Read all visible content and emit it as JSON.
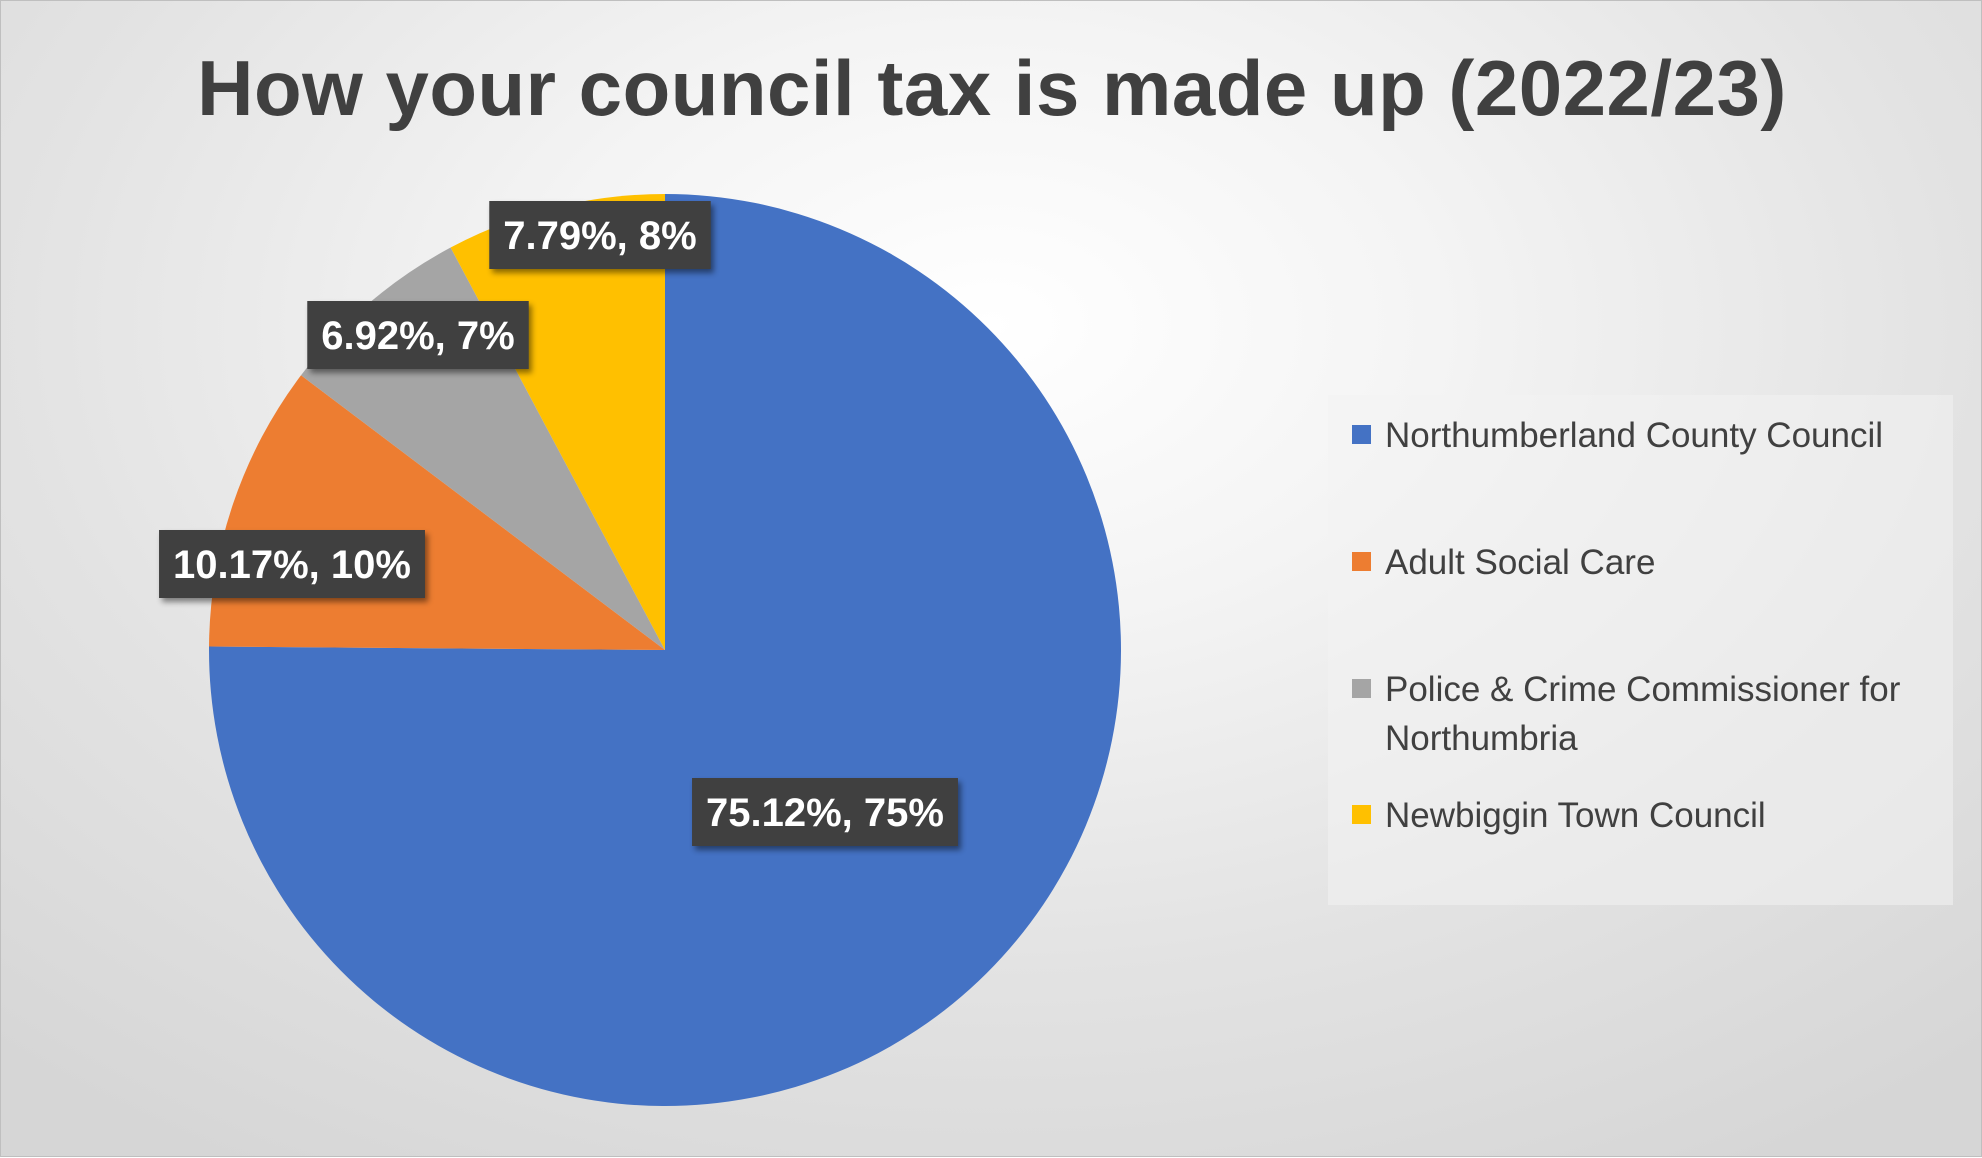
{
  "chart_data": {
    "type": "pie",
    "title": "How your council tax is made up (2022/23)",
    "start_angle_deg": 0,
    "direction": "clockwise",
    "slices": [
      {
        "name": "Northumberland County Council",
        "value": 75.12,
        "label": "75.12%, 75%",
        "color": "#4472C4"
      },
      {
        "name": "Adult Social Care",
        "value": 10.17,
        "label": "10.17%, 10%",
        "color": "#ED7D31"
      },
      {
        "name": "Police & Crime Commissioner for Northumbria",
        "value": 6.92,
        "label": "6.92%, 7%",
        "color": "#A5A5A5"
      },
      {
        "name": "Newbiggin Town Council",
        "value": 7.79,
        "label": "7.79%, 8%",
        "color": "#FFC000"
      }
    ],
    "legend": {
      "position": "right",
      "items": [
        "Northumberland County Council",
        "Adult Social Care",
        "Police & Crime Commissioner for Northumbria",
        "Newbiggin Town Council"
      ]
    }
  }
}
